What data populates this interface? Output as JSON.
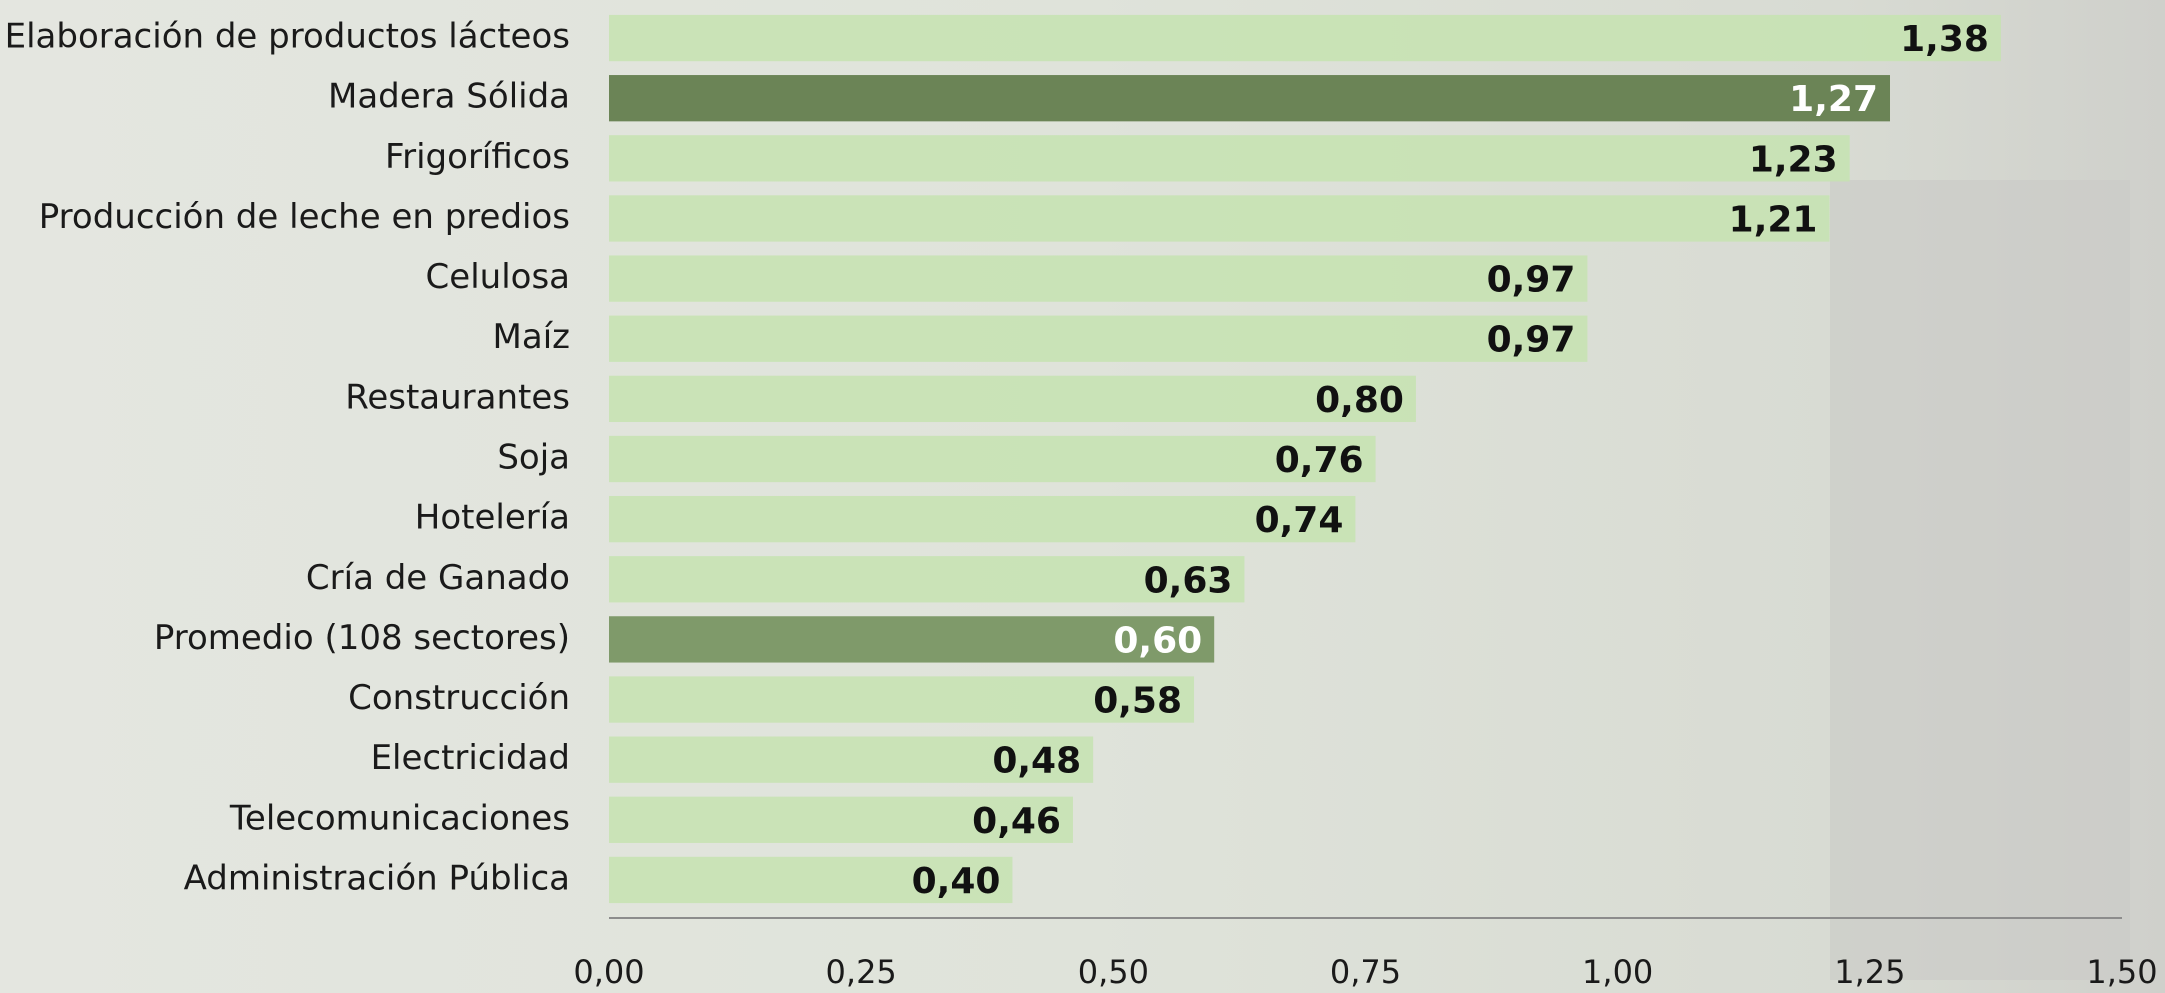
{
  "chart_data": {
    "type": "barh",
    "categories": [
      "Elaboración de productos lácteos",
      "Madera Sólida",
      "Frigoríficos",
      "Producción de leche en predios",
      "Celulosa",
      "Maíz",
      "Restaurantes",
      "Soja",
      "Hotelería",
      "Cría de Ganado",
      "Promedio (108 sectores)",
      "Construcción",
      "Electricidad",
      "Telecomunicaciones",
      "Administración Pública"
    ],
    "values": [
      1.38,
      1.27,
      1.23,
      1.21,
      0.97,
      0.97,
      0.8,
      0.76,
      0.74,
      0.63,
      0.6,
      0.58,
      0.48,
      0.46,
      0.4
    ],
    "value_labels": [
      "1,38",
      "1,27",
      "1,23",
      "1,21",
      "0,97",
      "0,97",
      "0,80",
      "0,76",
      "0,74",
      "0,63",
      "0,60",
      "0,58",
      "0,48",
      "0,46",
      "0,40"
    ],
    "colors": [
      "#c6e3b0",
      "#6b8456",
      "#c6e3b0",
      "#c6e3b0",
      "#c6e3b0",
      "#c6e3b0",
      "#c6e3b0",
      "#c6e3b0",
      "#c6e3b0",
      "#c6e3b0",
      "#7f9a6a",
      "#c6e3b0",
      "#c6e3b0",
      "#c6e3b0",
      "#c6e3b0"
    ],
    "xlim": [
      0,
      1.5
    ],
    "xticks": [
      {
        "value": 0,
        "label": "0,00"
      },
      {
        "value": 0.25,
        "label": "0,25"
      },
      {
        "value": 0.5,
        "label": "0,50"
      },
      {
        "value": 0.75,
        "label": "0,75"
      },
      {
        "value": 1,
        "label": "1,00"
      },
      {
        "value": 1.25,
        "label": "1,25"
      },
      {
        "value": 1.5,
        "label": "1,50"
      }
    ],
    "grid": false
  }
}
